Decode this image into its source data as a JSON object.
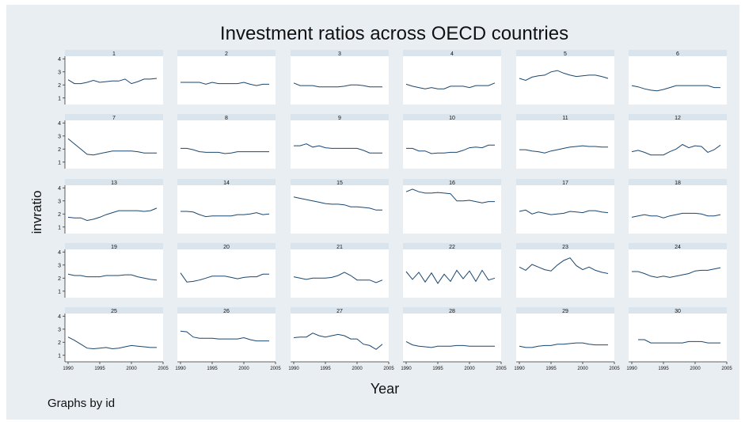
{
  "chart_data": {
    "type": "line",
    "title": "Investment ratios across OECD countries",
    "ylabel": "invratio",
    "xlabel": "Year",
    "note": "Graphs by id",
    "ylim": [
      0.5,
      4.2
    ],
    "xlim": [
      1989.5,
      2005
    ],
    "yticks": [
      1,
      2,
      3,
      4
    ],
    "xticks": [
      1990,
      1995,
      2000,
      2005
    ],
    "x": [
      1990,
      1991,
      1992,
      1993,
      1994,
      1995,
      1996,
      1997,
      1998,
      1999,
      2000,
      2001,
      2002,
      2003,
      2004
    ],
    "series": [
      {
        "name": "1",
        "values": [
          2.4,
          2.1,
          2.1,
          2.2,
          2.35,
          2.2,
          2.25,
          2.3,
          2.3,
          2.45,
          2.1,
          2.25,
          2.45,
          2.45,
          2.5
        ]
      },
      {
        "name": "2",
        "values": [
          2.2,
          2.2,
          2.2,
          2.2,
          2.05,
          2.2,
          2.1,
          2.1,
          2.1,
          2.1,
          2.2,
          2.05,
          1.95,
          2.05,
          2.05
        ]
      },
      {
        "name": "3",
        "values": [
          2.15,
          1.95,
          1.95,
          1.95,
          1.85,
          1.85,
          1.85,
          1.85,
          1.9,
          2.0,
          2.0,
          1.95,
          1.85,
          1.85,
          1.85
        ]
      },
      {
        "name": "4",
        "values": [
          2.05,
          1.9,
          1.8,
          1.7,
          1.8,
          1.7,
          1.7,
          1.9,
          1.9,
          1.9,
          1.8,
          1.95,
          1.95,
          1.95,
          2.15
        ]
      },
      {
        "name": "5",
        "values": [
          2.5,
          2.35,
          2.6,
          2.7,
          2.75,
          3.0,
          3.1,
          2.9,
          2.75,
          2.65,
          2.7,
          2.75,
          2.75,
          2.65,
          2.5
        ]
      },
      {
        "name": "6",
        "values": [
          1.95,
          1.85,
          1.7,
          1.6,
          1.55,
          1.65,
          1.8,
          1.95,
          1.95,
          1.95,
          1.95,
          1.95,
          1.95,
          1.8,
          1.8
        ]
      },
      {
        "name": "7",
        "values": [
          2.8,
          2.4,
          2.0,
          1.6,
          1.55,
          1.65,
          1.75,
          1.85,
          1.85,
          1.85,
          1.85,
          1.8,
          1.7,
          1.7,
          1.7
        ]
      },
      {
        "name": "8",
        "values": [
          2.05,
          2.05,
          1.95,
          1.8,
          1.75,
          1.75,
          1.75,
          1.65,
          1.7,
          1.8,
          1.8,
          1.8,
          1.8,
          1.8,
          1.8
        ]
      },
      {
        "name": "9",
        "values": [
          2.25,
          2.25,
          2.4,
          2.15,
          2.25,
          2.1,
          2.05,
          2.05,
          2.05,
          2.05,
          2.05,
          1.9,
          1.7,
          1.7,
          1.7
        ]
      },
      {
        "name": "10",
        "values": [
          2.05,
          2.05,
          1.85,
          1.85,
          1.65,
          1.7,
          1.7,
          1.75,
          1.75,
          1.9,
          2.1,
          2.15,
          2.1,
          2.3,
          2.3
        ]
      },
      {
        "name": "11",
        "values": [
          1.95,
          1.95,
          1.85,
          1.8,
          1.7,
          1.85,
          1.95,
          2.05,
          2.15,
          2.2,
          2.25,
          2.2,
          2.2,
          2.15,
          2.15
        ]
      },
      {
        "name": "12",
        "values": [
          1.8,
          1.9,
          1.75,
          1.55,
          1.55,
          1.55,
          1.8,
          2.0,
          2.35,
          2.1,
          2.25,
          2.2,
          1.75,
          1.95,
          2.3
        ]
      },
      {
        "name": "13",
        "values": [
          1.75,
          1.7,
          1.7,
          1.5,
          1.6,
          1.75,
          1.95,
          2.1,
          2.25,
          2.25,
          2.25,
          2.25,
          2.2,
          2.25,
          2.45
        ]
      },
      {
        "name": "14",
        "values": [
          2.2,
          2.2,
          2.15,
          1.95,
          1.8,
          1.85,
          1.85,
          1.85,
          1.85,
          1.95,
          1.95,
          2.0,
          2.1,
          1.95,
          2.0
        ]
      },
      {
        "name": "15",
        "values": [
          3.3,
          3.2,
          3.1,
          3.0,
          2.9,
          2.8,
          2.75,
          2.75,
          2.7,
          2.55,
          2.55,
          2.5,
          2.45,
          2.3,
          2.3
        ]
      },
      {
        "name": "16",
        "values": [
          3.7,
          3.9,
          3.7,
          3.6,
          3.6,
          3.65,
          3.6,
          3.55,
          3.0,
          3.0,
          3.05,
          2.95,
          2.85,
          2.95,
          2.95
        ]
      },
      {
        "name": "17",
        "values": [
          2.2,
          2.3,
          2.0,
          2.15,
          2.05,
          1.95,
          2.0,
          2.05,
          2.2,
          2.15,
          2.1,
          2.25,
          2.25,
          2.15,
          2.1
        ]
      },
      {
        "name": "18",
        "values": [
          1.75,
          1.85,
          1.95,
          1.85,
          1.85,
          1.7,
          1.85,
          1.95,
          2.05,
          2.05,
          2.05,
          2.0,
          1.85,
          1.85,
          1.95
        ]
      },
      {
        "name": "19",
        "values": [
          2.3,
          2.2,
          2.2,
          2.1,
          2.1,
          2.1,
          2.2,
          2.2,
          2.2,
          2.25,
          2.25,
          2.1,
          2.0,
          1.9,
          1.85
        ]
      },
      {
        "name": "20",
        "values": [
          2.4,
          1.7,
          1.75,
          1.85,
          2.0,
          2.15,
          2.15,
          2.15,
          2.05,
          1.95,
          2.05,
          2.1,
          2.1,
          2.3,
          2.3
        ]
      },
      {
        "name": "21",
        "values": [
          2.1,
          2.0,
          1.9,
          2.0,
          2.0,
          2.0,
          2.05,
          2.2,
          2.45,
          2.2,
          1.85,
          1.85,
          1.85,
          1.65,
          1.85
        ]
      },
      {
        "name": "22",
        "values": [
          2.5,
          1.9,
          2.45,
          1.7,
          2.4,
          1.6,
          2.3,
          1.75,
          2.6,
          1.95,
          2.55,
          1.75,
          2.6,
          1.85,
          2.0
        ]
      },
      {
        "name": "23",
        "values": [
          2.85,
          2.6,
          3.05,
          2.85,
          2.65,
          2.55,
          3.0,
          3.35,
          3.55,
          2.95,
          2.65,
          2.85,
          2.6,
          2.45,
          2.35
        ]
      },
      {
        "name": "24",
        "values": [
          2.5,
          2.5,
          2.35,
          2.15,
          2.05,
          2.15,
          2.05,
          2.15,
          2.25,
          2.35,
          2.55,
          2.6,
          2.6,
          2.7,
          2.8
        ]
      },
      {
        "name": "25",
        "values": [
          2.4,
          2.15,
          1.85,
          1.55,
          1.5,
          1.55,
          1.6,
          1.5,
          1.55,
          1.65,
          1.75,
          1.7,
          1.65,
          1.6,
          1.6
        ]
      },
      {
        "name": "26",
        "values": [
          2.85,
          2.8,
          2.4,
          2.3,
          2.3,
          2.3,
          2.25,
          2.25,
          2.25,
          2.25,
          2.35,
          2.2,
          2.1,
          2.1,
          2.1
        ]
      },
      {
        "name": "27",
        "values": [
          2.35,
          2.4,
          2.4,
          2.7,
          2.5,
          2.4,
          2.5,
          2.6,
          2.5,
          2.25,
          2.25,
          1.85,
          1.75,
          1.45,
          1.85
        ]
      },
      {
        "name": "28",
        "values": [
          2.05,
          1.8,
          1.7,
          1.65,
          1.6,
          1.7,
          1.7,
          1.7,
          1.75,
          1.75,
          1.7,
          1.7,
          1.7,
          1.7,
          1.7
        ]
      },
      {
        "name": "29",
        "values": [
          1.7,
          1.6,
          1.6,
          1.7,
          1.75,
          1.75,
          1.85,
          1.85,
          1.9,
          1.95,
          1.95,
          1.85,
          1.8,
          1.8,
          1.8
        ]
      },
      {
        "name": "30",
        "values": [
          null,
          2.2,
          2.2,
          1.95,
          1.95,
          1.95,
          1.95,
          1.95,
          1.95,
          2.05,
          2.05,
          2.05,
          1.95,
          1.95,
          1.95
        ]
      }
    ]
  }
}
